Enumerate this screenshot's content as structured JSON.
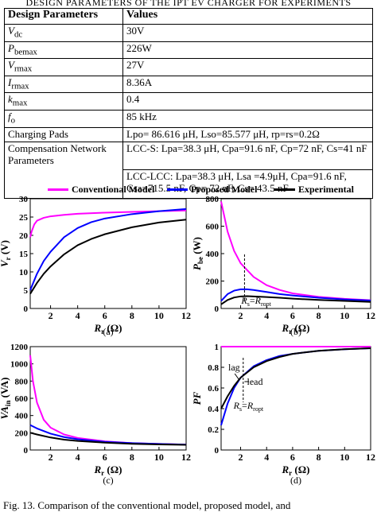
{
  "table": {
    "caption": "DESIGN PARAMETERS OF THE IPT EV CHARGER FOR EXPERIMENTS",
    "headers": [
      "Design Parameters",
      "Values"
    ],
    "rows": [
      {
        "param": "V_dc",
        "value": "30V"
      },
      {
        "param": "P_bemax",
        "value": "226W"
      },
      {
        "param": "V_rmax",
        "value": "27V"
      },
      {
        "param": "I_rmax",
        "value": "8.36A"
      },
      {
        "param": "k_max",
        "value": "0.4"
      },
      {
        "param": "f_o",
        "value": "85 kHz"
      },
      {
        "param": "Charging Pads",
        "value": "Lpo= 86.616 μH, Lso=85.577 μH, rp=rs=0.2Ω"
      },
      {
        "param": "Compensation Network Parameters",
        "value_lccs": "LCC-S: Lpa=38.3 μH, Cpa=91.6 nF, Cp=72 nF, Cs=41 nF",
        "value_lcclcc": "LCC-LCC: Lpa=38.3 μH, Lsa =4.9μH, Cpa=91.6 nF, Csa=715.5 nF, Cp= 72 nF, Cs= 43.5 nF"
      }
    ]
  },
  "legend": {
    "conventional": "Conventional Model",
    "proposed": "Proposed Model",
    "experimental": "Experimental"
  },
  "colors": {
    "conventional": "#ff00ff",
    "proposed": "#0000ff",
    "experimental": "#000000"
  },
  "fig_caption": "Fig. 13.   Comparison of the conventional model, proposed model, and",
  "chart_data": [
    {
      "type": "line",
      "panel": "(a)",
      "xlabel": "R_r (Ω)",
      "ylabel": "V_r (V)",
      "xlim": [
        0.5,
        12
      ],
      "ylim": [
        0,
        30
      ],
      "xticks": [
        2,
        4,
        6,
        8,
        10,
        12
      ],
      "yticks": [
        0,
        5,
        10,
        15,
        20,
        25,
        30
      ],
      "series": [
        {
          "name": "Conventional Model",
          "x": [
            0.5,
            0.6,
            0.8,
            1,
            1.5,
            2,
            3,
            4,
            6,
            8,
            10,
            12
          ],
          "y": [
            19.5,
            21,
            23,
            24,
            24.8,
            25.2,
            25.6,
            25.9,
            26.2,
            26.4,
            26.6,
            26.8
          ]
        },
        {
          "name": "Proposed Model",
          "x": [
            0.5,
            1,
            1.5,
            2,
            3,
            4,
            5,
            6,
            8,
            10,
            12
          ],
          "y": [
            5,
            9.5,
            13,
            15.5,
            19.5,
            22,
            23.6,
            24.6,
            25.8,
            26.6,
            27.2
          ]
        },
        {
          "name": "Experimental",
          "x": [
            0.5,
            1,
            1.5,
            2,
            3,
            4,
            5,
            6,
            8,
            10,
            12
          ],
          "y": [
            4,
            7,
            9.5,
            11.5,
            14.8,
            17.3,
            19,
            20.3,
            22.2,
            23.5,
            24.3
          ]
        }
      ]
    },
    {
      "type": "line",
      "panel": "(b)",
      "xlabel": "R_r (Ω)",
      "ylabel": "P_be (W)",
      "xlim": [
        0.5,
        12
      ],
      "ylim": [
        0,
        800
      ],
      "xticks": [
        2,
        4,
        6,
        8,
        10,
        12
      ],
      "yticks": [
        0,
        200,
        400,
        600,
        800
      ],
      "series": [
        {
          "name": "Conventional Model",
          "x": [
            0.5,
            1,
            1.5,
            2,
            3,
            4,
            5,
            6,
            8,
            10,
            12
          ],
          "y": [
            780,
            560,
            420,
            330,
            230,
            170,
            135,
            110,
            85,
            70,
            60
          ]
        },
        {
          "name": "Proposed Model",
          "x": [
            0.5,
            1,
            1.5,
            2,
            2.5,
            3,
            4,
            5,
            6,
            8,
            10,
            12
          ],
          "y": [
            55,
            105,
            130,
            140,
            140,
            135,
            120,
            105,
            95,
            78,
            66,
            58
          ]
        },
        {
          "name": "Experimental",
          "x": [
            0.5,
            1,
            1.5,
            2,
            2.5,
            3,
            4,
            5,
            6,
            8,
            10,
            12
          ],
          "y": [
            30,
            62,
            80,
            88,
            90,
            88,
            83,
            78,
            72,
            62,
            55,
            48
          ]
        }
      ],
      "annotations": [
        "R_s=R_ropt"
      ],
      "marker_x": 2.3
    },
    {
      "type": "line",
      "panel": "(c)",
      "xlabel": "R_r (Ω)",
      "ylabel": "VA_in (VA)",
      "xlim": [
        0.5,
        12
      ],
      "ylim": [
        0,
        1200
      ],
      "xticks": [
        2,
        4,
        6,
        8,
        10,
        12
      ],
      "yticks": [
        0,
        200,
        400,
        600,
        800,
        1000,
        1200
      ],
      "series": [
        {
          "name": "Conventional Model",
          "x": [
            0.5,
            0.7,
            1,
            1.5,
            2,
            3,
            4,
            6,
            8,
            10,
            12
          ],
          "y": [
            1100,
            800,
            550,
            350,
            260,
            180,
            140,
            100,
            80,
            70,
            62
          ]
        },
        {
          "name": "Proposed Model",
          "x": [
            0.5,
            1,
            2,
            3,
            4,
            6,
            8,
            10,
            12
          ],
          "y": [
            290,
            250,
            190,
            150,
            125,
            95,
            80,
            70,
            62
          ]
        },
        {
          "name": "Experimental",
          "x": [
            0.5,
            1,
            2,
            3,
            4,
            6,
            8,
            10,
            12
          ],
          "y": [
            200,
            180,
            145,
            120,
            105,
            85,
            72,
            65,
            60
          ]
        }
      ]
    },
    {
      "type": "line",
      "panel": "(d)",
      "xlabel": "R_r (Ω)",
      "ylabel": "PF",
      "xlim": [
        0.5,
        12
      ],
      "ylim": [
        0,
        1
      ],
      "xticks": [
        2,
        4,
        6,
        8,
        10,
        12
      ],
      "yticks": [
        0,
        0.2,
        0.4,
        0.6,
        0.8,
        1
      ],
      "series": [
        {
          "name": "Conventional Model",
          "x": [
            0.5,
            12
          ],
          "y": [
            1,
            1
          ]
        },
        {
          "name": "Proposed Model",
          "x": [
            0.5,
            1,
            1.5,
            2,
            3,
            4,
            5,
            6,
            8,
            10,
            12
          ],
          "y": [
            0.24,
            0.45,
            0.6,
            0.7,
            0.81,
            0.87,
            0.91,
            0.93,
            0.96,
            0.975,
            0.985
          ]
        },
        {
          "name": "Experimental",
          "x": [
            0.5,
            1,
            1.5,
            2,
            3,
            4,
            5,
            6,
            8,
            10,
            12
          ],
          "y": [
            0.4,
            0.52,
            0.62,
            0.7,
            0.8,
            0.86,
            0.9,
            0.93,
            0.96,
            0.975,
            0.985
          ]
        }
      ],
      "annotations": [
        "lag",
        "lead",
        "R_s=R_ropt"
      ],
      "marker_x": 2.2
    }
  ]
}
